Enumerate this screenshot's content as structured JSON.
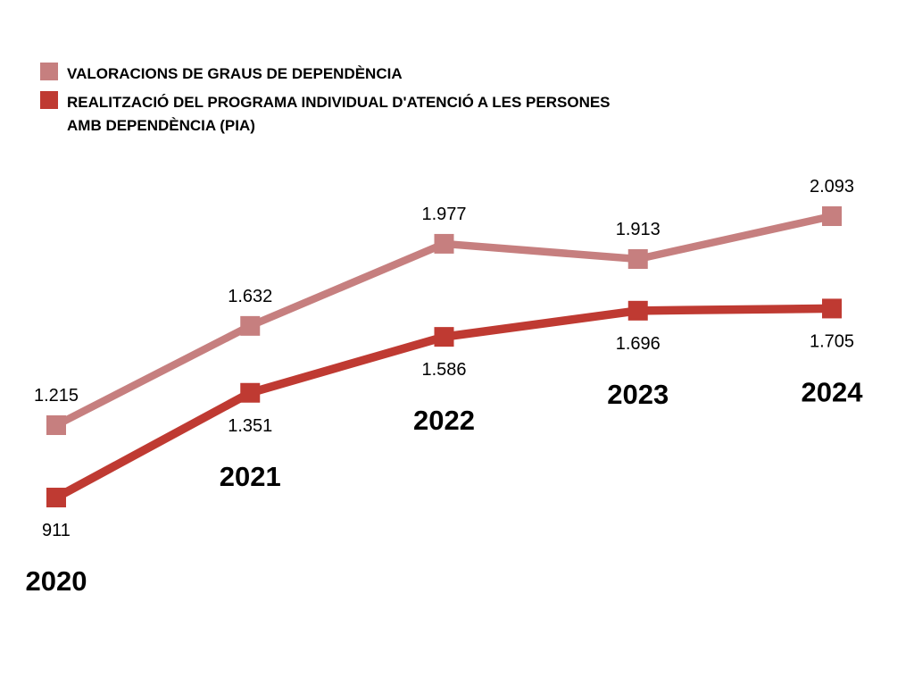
{
  "chart_data": {
    "type": "line",
    "title": "",
    "xlabel": "",
    "ylabel": "",
    "grid": false,
    "axes_visible": false,
    "legend_position": "top-left",
    "marker_shape": "square",
    "background_color": "#ffffff",
    "text_color": "#000000",
    "categories": [
      "2020",
      "2021",
      "2022",
      "2023",
      "2024"
    ],
    "series": [
      {
        "name": "VALORACIONS DE GRAUS DE DEPENDÈNCIA",
        "color": "#C67F7F",
        "values": [
          1215,
          1632,
          1977,
          1913,
          2093
        ],
        "value_labels": [
          "1.215",
          "1.632",
          "1.977",
          "1.913",
          "2.093"
        ],
        "label_position": "above"
      },
      {
        "name": "REALITZACIÓ DEL PROGRAMA INDIVIDUAL D'ATENCIÓ A LES PERSONES AMB DEPENDÈNCIA (PIA)",
        "color": "#BF3A32",
        "values": [
          911,
          1351,
          1586,
          1696,
          1705
        ],
        "value_labels": [
          "911",
          "1.351",
          "1.586",
          "1.696",
          "1.705"
        ],
        "label_position": "below"
      }
    ],
    "ylim": [
      800,
      2200
    ]
  }
}
